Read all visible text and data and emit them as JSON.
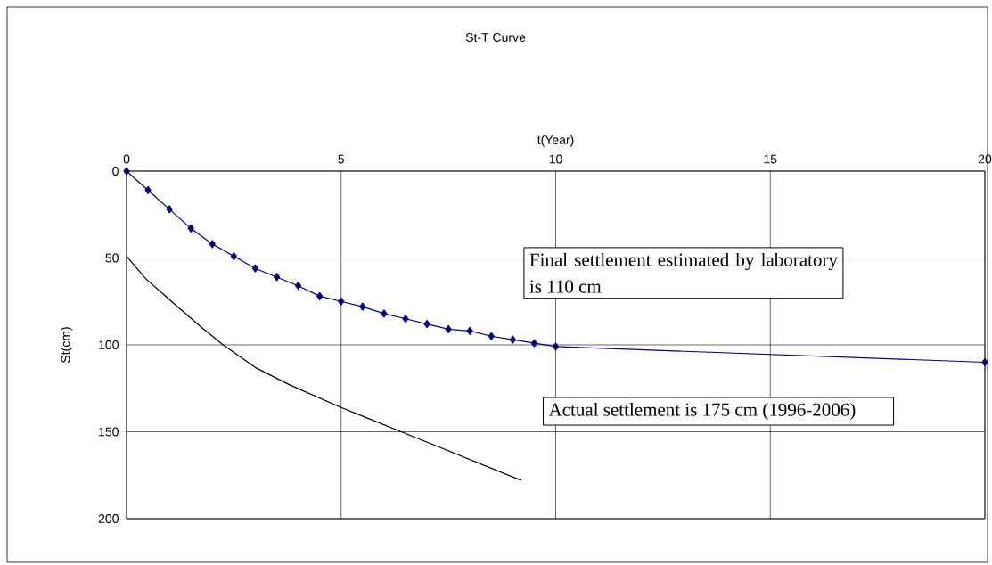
{
  "chart_data": {
    "type": "line",
    "title": "St-T Curve",
    "xlabel": "t(Year)",
    "ylabel": "St(cm)",
    "xlim": [
      0,
      20
    ],
    "ylim": [
      200,
      0
    ],
    "xticks": [
      0,
      5,
      10,
      15,
      20
    ],
    "yticks": [
      0,
      50,
      100,
      150,
      200
    ],
    "grid": true,
    "marker": "diamond",
    "series": [
      {
        "color": "#000080",
        "x": [
          0,
          0.5,
          1,
          1.5,
          2,
          2.5,
          3,
          3.5,
          4,
          4.5,
          5,
          5.5,
          6,
          6.5,
          7,
          7.5,
          8,
          8.5,
          9,
          9.5,
          10,
          20
        ],
        "values": [
          0,
          11,
          22,
          33,
          42,
          49,
          56,
          61,
          66,
          72,
          75,
          78,
          82,
          85,
          88,
          91,
          92,
          95,
          97,
          99,
          101,
          110
        ]
      },
      {
        "color": "#000000",
        "marker": "none",
        "x": [
          0,
          0.45,
          1,
          1.7,
          2.25,
          3,
          3.8,
          5,
          5.6,
          6.4,
          9.2
        ],
        "values": [
          49,
          62,
          74,
          89,
          100,
          113,
          123,
          136,
          142,
          150,
          178
        ]
      }
    ],
    "annotations": [
      "Final settlement estimated by laboratory is 110 cm",
      "Actual settlement is 175 cm (1996-2006)"
    ]
  }
}
